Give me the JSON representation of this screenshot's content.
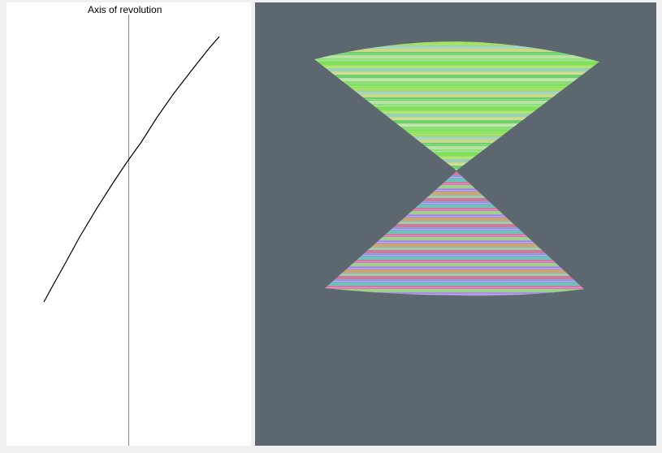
{
  "profile_editor": {
    "axis_label": "Axis of revolution",
    "curve_color": "#000000",
    "axis_color": "#8a8a8a",
    "background": "#ffffff"
  },
  "viewport_3d": {
    "background": "#5c6770",
    "shape": "double cone (surface of revolution)",
    "upper_palette": [
      "#7fe05a",
      "#a6e06b",
      "#9ad2b0",
      "#c9d98c",
      "#6fcf6a",
      "#b7e4a3",
      "#8fdc7a"
    ],
    "lower_palette": [
      "#9fc0a0",
      "#c77c9a",
      "#8f9ae0",
      "#6fc0b8",
      "#d07aa8",
      "#a0d090",
      "#a78de0",
      "#c9a57a"
    ]
  }
}
